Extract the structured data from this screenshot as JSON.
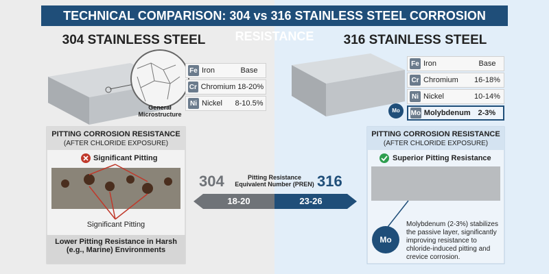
{
  "header": {
    "title": "TECHNICAL COMPARISON: 304 vs 316 STAINLESS STEEL CORROSION RESISTANCE"
  },
  "center": {
    "left_grade": "304",
    "label": "Pitting Resistance Equivalent Number (PREN)",
    "right_grade": "316",
    "left_range": "18-20",
    "right_range": "23-26"
  },
  "panels": [
    {
      "heading": "304 STAINLESS STEEL",
      "microstructure_label": "General Microstructure",
      "composition": [
        [
          "Fe",
          "Iron",
          "Base"
        ],
        [
          "Cr",
          "Chromium",
          "18-20%"
        ],
        [
          "Ni",
          "Nickel",
          "8-10.5%"
        ]
      ],
      "pitting": {
        "title": "PITTING CORROSION RESISTANCE",
        "subtitle": "(AFTER CHLORIDE EXPOSURE)",
        "badge": "Significant Pitting",
        "callout": "Significant Pitting",
        "footer": "Lower Pitting Resistance in Harsh (e.g., Marine) Environments"
      }
    },
    {
      "heading": "316 STAINLESS STEEL",
      "composition": [
        [
          "Fe",
          "Iron",
          "Base"
        ],
        [
          "Cr",
          "Chromium",
          "16-18%"
        ],
        [
          "Ni",
          "Nickel",
          "10-14%"
        ],
        [
          "Mo",
          "Molybdenum",
          "2-3%"
        ]
      ],
      "pitting": {
        "title": "PITTING CORROSION RESISTANCE",
        "subtitle": "(AFTER CHLORIDE EXPOSURE)",
        "badge": "Superior Pitting Resistance",
        "note": "Molybdenum (2-3%) stabilizes the passive layer, significantly improving resistance to chloride-induced pitting and crevice corrosion."
      }
    }
  ]
}
